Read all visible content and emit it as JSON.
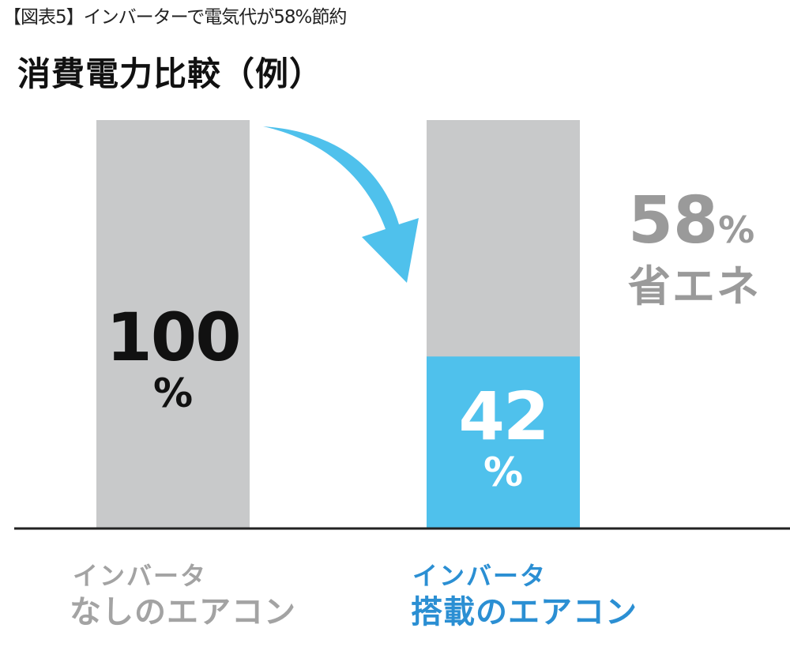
{
  "caption": "【図表5】インバーターで電気代が58%節約",
  "chart_data": {
    "type": "bar",
    "title": "消費電力比較（例）",
    "categories": [
      {
        "line1": "インバータ",
        "line2": "なしのエアコン"
      },
      {
        "line1": "インバータ",
        "line2": "搭載のエアコン"
      }
    ],
    "values": [
      100,
      42
    ],
    "value_labels": [
      {
        "num": "100",
        "unit": "%"
      },
      {
        "num": "42",
        "unit": "%"
      }
    ],
    "ylim": [
      0,
      100
    ],
    "annotation": {
      "num": "58",
      "unit": "%",
      "text": "省エネ"
    },
    "colors": {
      "gray": "#c8c9ca",
      "blue": "#4fc1ec",
      "blue_label": "#2b8fd3",
      "gray_label": "#a3a3a3",
      "annotation": "#9a9a9a"
    }
  }
}
